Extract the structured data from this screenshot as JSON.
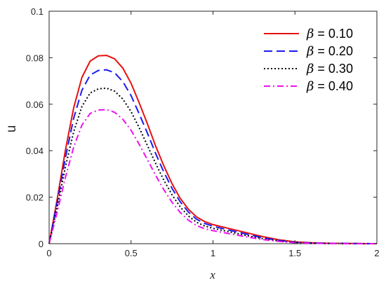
{
  "chart_data": {
    "type": "line",
    "title": "",
    "xlabel": "x",
    "ylabel": "u",
    "xlim": [
      0,
      2
    ],
    "ylim": [
      0,
      0.1
    ],
    "xticks": [
      "0",
      "0.5",
      "1",
      "1.5",
      "2"
    ],
    "yticks": [
      "0",
      "0.02",
      "0.04",
      "0.06",
      "0.08",
      "0.1"
    ],
    "grid": false,
    "legend_position": "top-right",
    "x": [
      0,
      0.05,
      0.1,
      0.15,
      0.2,
      0.25,
      0.3,
      0.35,
      0.4,
      0.45,
      0.5,
      0.55,
      0.6,
      0.65,
      0.7,
      0.75,
      0.8,
      0.85,
      0.9,
      0.95,
      1.0,
      1.1,
      1.2,
      1.3,
      1.4,
      1.5,
      1.6,
      1.7,
      1.8,
      1.9,
      2.0
    ],
    "series": [
      {
        "name": "β = 0.10",
        "color": "#e81010",
        "dash": "solid",
        "values": [
          0,
          0.0195,
          0.0405,
          0.0585,
          0.0715,
          0.0785,
          0.0808,
          0.081,
          0.0795,
          0.0755,
          0.069,
          0.0605,
          0.0515,
          0.042,
          0.0335,
          0.0258,
          0.0195,
          0.0148,
          0.0115,
          0.0095,
          0.0082,
          0.0065,
          0.0048,
          0.0031,
          0.0017,
          0.0008,
          0.0004,
          0.0002,
          0.0001,
          5e-05,
          0.0
        ]
      },
      {
        "name": "β = 0.20",
        "color": "#1b1bf0",
        "dash": "long-dash",
        "values": [
          0,
          0.018,
          0.0372,
          0.054,
          0.066,
          0.0725,
          0.0745,
          0.0748,
          0.0735,
          0.0697,
          0.0637,
          0.0558,
          0.0475,
          0.0388,
          0.0308,
          0.0238,
          0.018,
          0.0136,
          0.0105,
          0.0087,
          0.0075,
          0.0058,
          0.0042,
          0.0026,
          0.0014,
          0.0006,
          0.0003,
          0.00015,
          0.0001,
          5e-05,
          0.0
        ]
      },
      {
        "name": "β = 0.30",
        "color": "#000000",
        "dash": "dotted",
        "values": [
          0,
          0.016,
          0.0332,
          0.0482,
          0.059,
          0.0648,
          0.0666,
          0.0669,
          0.0656,
          0.0622,
          0.0568,
          0.0498,
          0.0422,
          0.0345,
          0.0273,
          0.021,
          0.0158,
          0.0119,
          0.0092,
          0.0076,
          0.0066,
          0.0051,
          0.0036,
          0.0022,
          0.0012,
          0.0005,
          0.0002,
          0.0001,
          5e-05,
          2e-05,
          0.0
        ]
      },
      {
        "name": "β = 0.40",
        "color": "#ee10ee",
        "dash": "dash-dot",
        "values": [
          0,
          0.0138,
          0.0287,
          0.0416,
          0.051,
          0.056,
          0.0575,
          0.0577,
          0.0565,
          0.0535,
          0.0488,
          0.0427,
          0.0361,
          0.0294,
          0.0232,
          0.0178,
          0.0134,
          0.0101,
          0.0078,
          0.0064,
          0.0056,
          0.0043,
          0.003,
          0.0018,
          0.001,
          0.0004,
          0.0002,
          0.0001,
          5e-05,
          2e-05,
          0.0
        ]
      }
    ]
  }
}
